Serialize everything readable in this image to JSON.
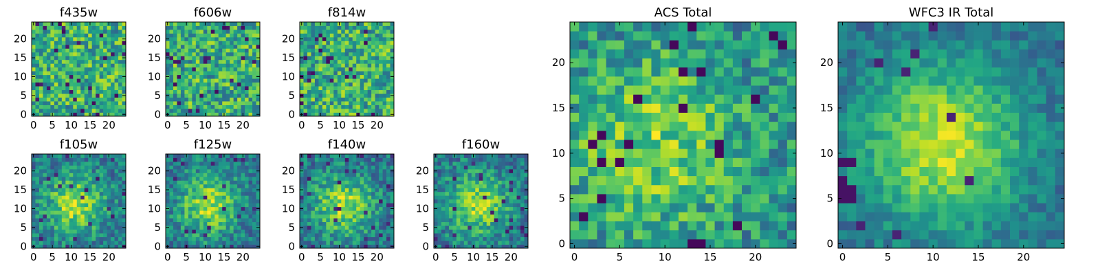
{
  "chart_data": [
    {
      "type": "heatmap",
      "title": "f435w",
      "size": 25,
      "xticks": [
        0,
        5,
        10,
        15,
        20
      ],
      "yticks": [
        0,
        5,
        10,
        15,
        20
      ],
      "xlim": [
        -0.5,
        24.5
      ],
      "ylim": [
        -0.5,
        24.5
      ],
      "colormap": "viridis",
      "pattern": "noise",
      "seed": 11,
      "grid": false
    },
    {
      "type": "heatmap",
      "title": "f606w",
      "size": 25,
      "xticks": [
        0,
        5,
        10,
        15,
        20
      ],
      "yticks": [
        0,
        5,
        10,
        15,
        20
      ],
      "xlim": [
        -0.5,
        24.5
      ],
      "ylim": [
        -0.5,
        24.5
      ],
      "colormap": "viridis",
      "pattern": "noise",
      "seed": 23,
      "grid": false
    },
    {
      "type": "heatmap",
      "title": "f814w",
      "size": 25,
      "xticks": [
        0,
        5,
        10,
        15,
        20
      ],
      "yticks": [
        0,
        5,
        10,
        15,
        20
      ],
      "xlim": [
        -0.5,
        24.5
      ],
      "ylim": [
        -0.5,
        24.5
      ],
      "colormap": "viridis",
      "pattern": "noise",
      "seed": 37,
      "grid": false
    },
    {
      "type": "heatmap",
      "title": "f105w",
      "size": 25,
      "xticks": [
        0,
        5,
        10,
        15,
        20
      ],
      "yticks": [
        0,
        5,
        10,
        15,
        20
      ],
      "xlim": [
        -0.5,
        24.5
      ],
      "ylim": [
        -0.5,
        24.5
      ],
      "colormap": "viridis",
      "pattern": "blob",
      "seed": 41,
      "grid": false
    },
    {
      "type": "heatmap",
      "title": "f125w",
      "size": 25,
      "xticks": [
        0,
        5,
        10,
        15,
        20
      ],
      "yticks": [
        0,
        5,
        10,
        15,
        20
      ],
      "xlim": [
        -0.5,
        24.5
      ],
      "ylim": [
        -0.5,
        24.5
      ],
      "colormap": "viridis",
      "pattern": "blob",
      "seed": 53,
      "grid": false
    },
    {
      "type": "heatmap",
      "title": "f140w",
      "size": 25,
      "xticks": [
        0,
        5,
        10,
        15,
        20
      ],
      "yticks": [
        0,
        5,
        10,
        15,
        20
      ],
      "xlim": [
        -0.5,
        24.5
      ],
      "ylim": [
        -0.5,
        24.5
      ],
      "colormap": "viridis",
      "pattern": "blob",
      "seed": 67,
      "grid": false
    },
    {
      "type": "heatmap",
      "title": "f160w",
      "size": 25,
      "xticks": [
        0,
        5,
        10,
        15,
        20
      ],
      "yticks": [
        0,
        5,
        10,
        15,
        20
      ],
      "xlim": [
        -0.5,
        24.5
      ],
      "ylim": [
        -0.5,
        24.5
      ],
      "colormap": "viridis",
      "pattern": "blob",
      "seed": 79,
      "grid": false
    },
    {
      "type": "heatmap",
      "title": "ACS Total",
      "size": 25,
      "xticks": [
        0,
        5,
        10,
        15,
        20
      ],
      "yticks": [
        0,
        5,
        10,
        15,
        20
      ],
      "xlim": [
        -0.5,
        24.5
      ],
      "ylim": [
        -0.5,
        24.5
      ],
      "colormap": "viridis",
      "pattern": "acs",
      "seed": 97,
      "grid": false
    },
    {
      "type": "heatmap",
      "title": "WFC3 IR Total",
      "size": 25,
      "xticks": [
        0,
        5,
        10,
        15,
        20
      ],
      "yticks": [
        0,
        5,
        10,
        15,
        20
      ],
      "xlim": [
        -0.5,
        24.5
      ],
      "ylim": [
        -0.5,
        24.5
      ],
      "colormap": "viridis",
      "pattern": "ir",
      "seed": 113,
      "grid": false
    }
  ],
  "colors": {
    "dark": "#440154",
    "blue": "#3b528b",
    "teal": "#21918c",
    "green": "#5ec962",
    "yellow": "#fde725"
  }
}
